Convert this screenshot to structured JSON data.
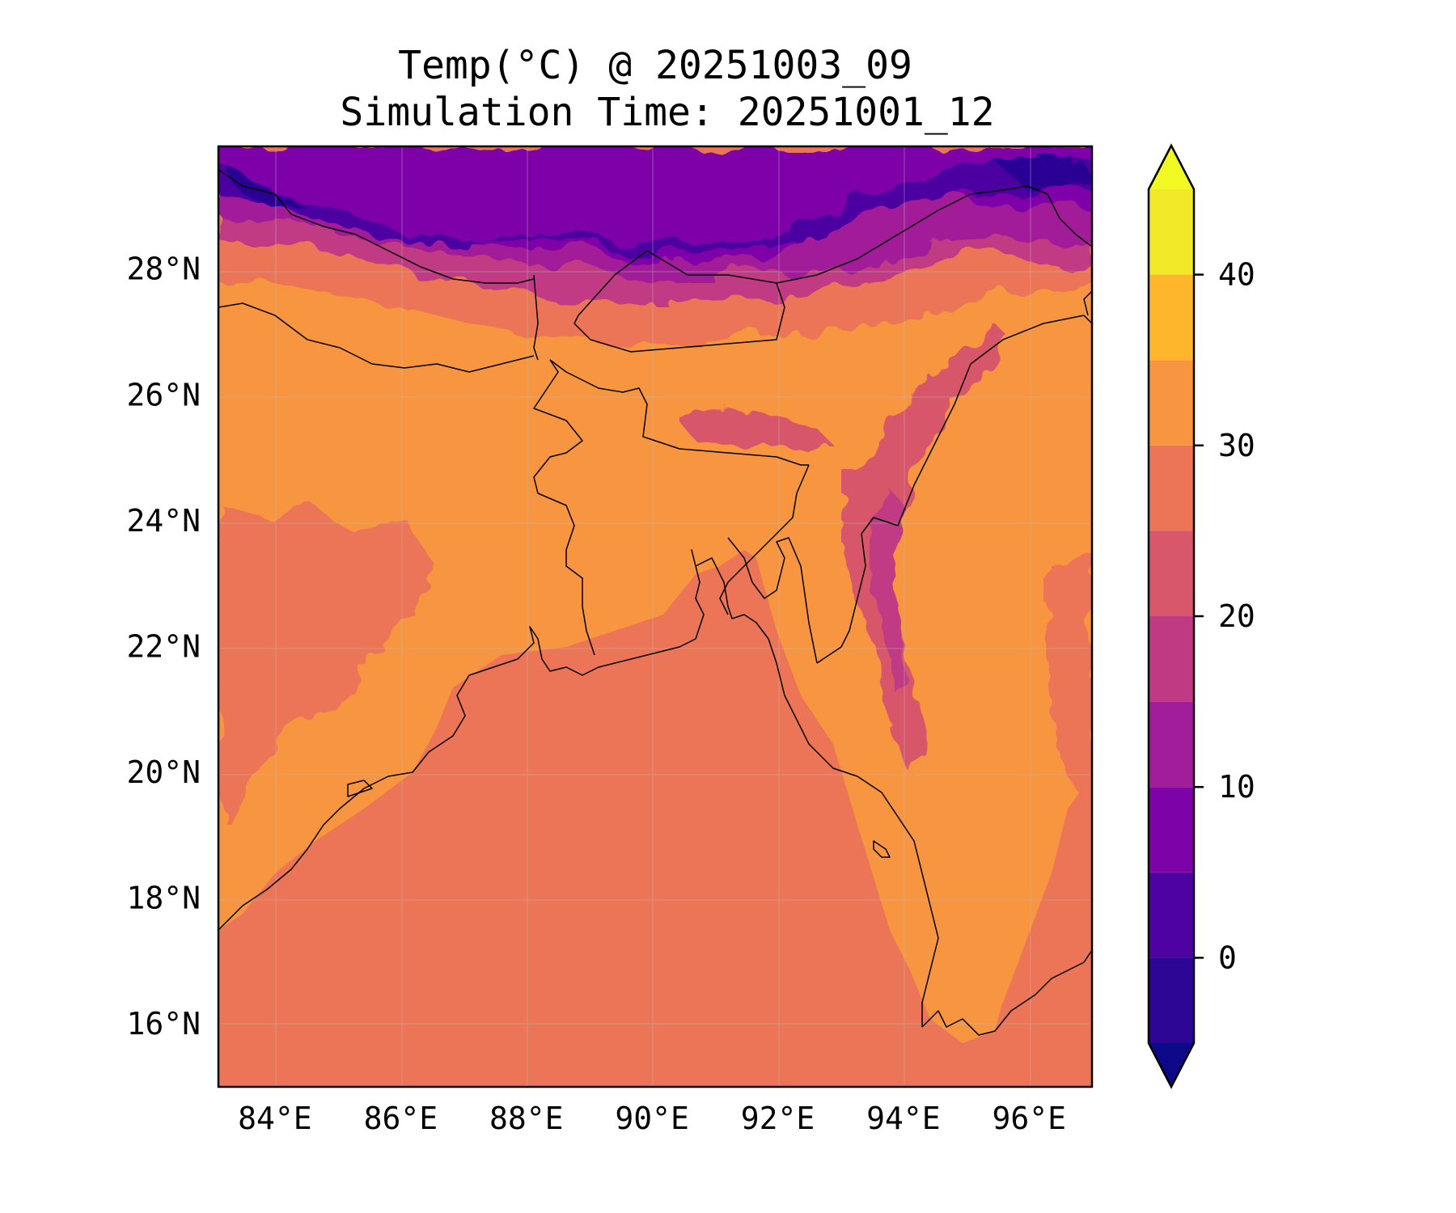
{
  "title_line1": "Temp(°C) @ 20251003_09",
  "title_line2": "Simulation Time: 20251001_12",
  "chart_data": {
    "type": "heatmap",
    "variable": "Temp(°C)",
    "projection": "PlateCarree",
    "lon_range": [
      83.1,
      97.0
    ],
    "lat_range": [
      15.0,
      29.95
    ],
    "x_ticks": [
      "84°E",
      "86°E",
      "88°E",
      "90°E",
      "92°E",
      "94°E",
      "96°E"
    ],
    "x_tick_values": [
      84,
      86,
      88,
      90,
      92,
      94,
      96
    ],
    "y_ticks": [
      "16°N",
      "18°N",
      "20°N",
      "22°N",
      "24°N",
      "26°N",
      "28°N"
    ],
    "y_tick_values": [
      16,
      18,
      20,
      22,
      24,
      26,
      28
    ],
    "grid": true,
    "colorbar": {
      "cmap": "plasma",
      "extend": "both",
      "levels": [
        -5,
        0,
        5,
        10,
        15,
        20,
        25,
        30,
        35,
        40,
        45
      ],
      "tick_labels": [
        "0",
        "10",
        "20",
        "30",
        "40"
      ],
      "tick_values": [
        0,
        10,
        20,
        30,
        40
      ],
      "under_color": "#0d0887",
      "over_color": "#f0f921",
      "band_colors": [
        "#2c0594",
        "#4e02a2",
        "#7d03a8",
        "#a21d9a",
        "#c03a83",
        "#d8576b",
        "#eb7556",
        "#f79540",
        "#feb72d",
        "#f1e927"
      ]
    },
    "field_description_regions": {
      "ocean_bay_of_bengal": "25-30 band",
      "indo_gangetic_plain_and_bangladesh": "30-35 band",
      "himalaya_tibet": "0-15 bands",
      "arakan_hills": "15-25 bands"
    }
  }
}
